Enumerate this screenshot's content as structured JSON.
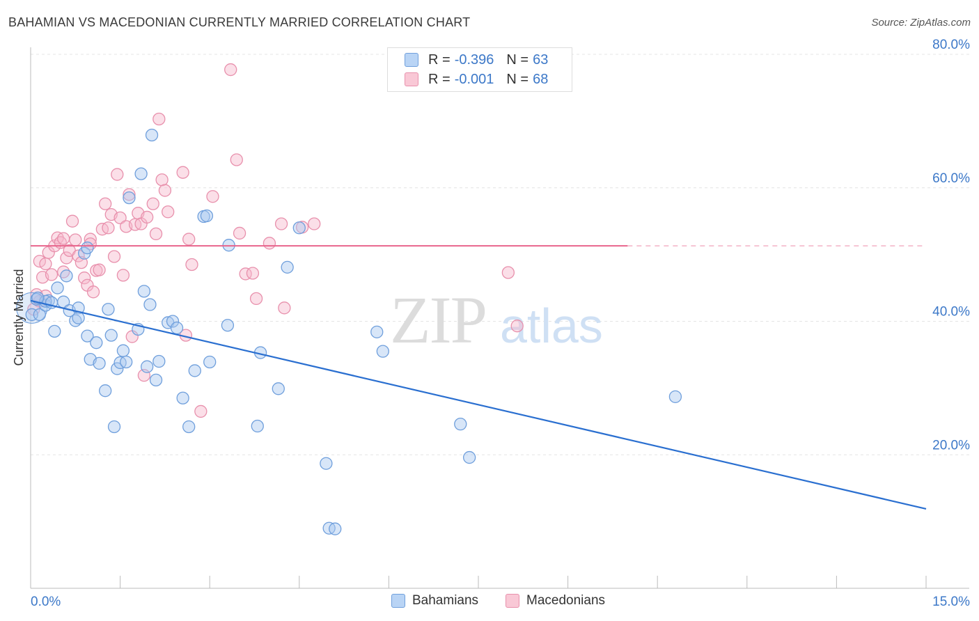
{
  "header": {
    "title": "BAHAMIAN VS MACEDONIAN CURRENTLY MARRIED CORRELATION CHART",
    "source": "Source: ZipAtlas.com"
  },
  "legend": {
    "rows": [
      {
        "r_label": "R = ",
        "r_value": "-0.396",
        "n_label": "N = ",
        "n_value": "63"
      },
      {
        "r_label": "R = ",
        "r_value": "-0.001",
        "n_label": "N = ",
        "n_value": "68"
      }
    ],
    "series": [
      "Bahamians",
      "Macedonians"
    ]
  },
  "colors": {
    "blue_fill": "#a8c8f0",
    "blue_stroke": "#6f9fdc",
    "blue_line": "#2a6fd0",
    "pink_fill": "#f7b7cb",
    "pink_stroke": "#e890ac",
    "pink_line": "#e8648c",
    "axis_text": "#3c78c8"
  },
  "chart_data": {
    "type": "scatter",
    "title": "BAHAMIAN VS MACEDONIAN CURRENTLY MARRIED CORRELATION CHART",
    "xlabel": "",
    "ylabel": "Currently Married",
    "xlim": [
      0,
      15
    ],
    "ylim": [
      0,
      80
    ],
    "x_tick_labels": [
      "0.0%",
      "15.0%"
    ],
    "y_tick_labels": [
      "20.0%",
      "40.0%",
      "60.0%",
      "80.0%"
    ],
    "y_ticks": [
      20,
      40,
      60,
      80
    ],
    "grid": true,
    "legend_position": "top-center",
    "watermark": "ZIPatlas",
    "series": [
      {
        "name": "Bahamians",
        "R": -0.396,
        "N": 63,
        "trend": {
          "x": [
            0,
            15
          ],
          "y": [
            43.1,
            11.9
          ]
        },
        "points": [
          [
            0.02,
            41.0
          ],
          [
            0.1,
            43.3
          ],
          [
            0.15,
            41.0
          ],
          [
            0.25,
            42.4
          ],
          [
            0.3,
            43.1
          ],
          [
            0.4,
            38.5
          ],
          [
            0.45,
            45.0
          ],
          [
            0.55,
            42.9
          ],
          [
            0.6,
            46.8
          ],
          [
            0.65,
            41.6
          ],
          [
            0.75,
            40.1
          ],
          [
            0.8,
            42.0
          ],
          [
            0.8,
            40.5
          ],
          [
            0.9,
            50.2
          ],
          [
            0.95,
            37.8
          ],
          [
            1.0,
            34.3
          ],
          [
            1.1,
            36.8
          ],
          [
            1.15,
            33.7
          ],
          [
            1.25,
            29.6
          ],
          [
            1.3,
            41.8
          ],
          [
            1.35,
            37.9
          ],
          [
            1.4,
            24.2
          ],
          [
            1.45,
            32.9
          ],
          [
            1.5,
            33.8
          ],
          [
            1.55,
            35.6
          ],
          [
            1.6,
            33.9
          ],
          [
            1.65,
            58.5
          ],
          [
            1.8,
            38.8
          ],
          [
            1.85,
            62.1
          ],
          [
            1.9,
            44.5
          ],
          [
            1.95,
            33.2
          ],
          [
            2.0,
            42.5
          ],
          [
            2.03,
            67.9
          ],
          [
            2.1,
            31.2
          ],
          [
            2.15,
            34.0
          ],
          [
            2.3,
            39.8
          ],
          [
            2.38,
            40.0
          ],
          [
            2.45,
            39.0
          ],
          [
            2.55,
            28.5
          ],
          [
            2.65,
            24.2
          ],
          [
            2.75,
            32.6
          ],
          [
            2.9,
            55.7
          ],
          [
            2.95,
            55.8
          ],
          [
            3.0,
            33.9
          ],
          [
            3.3,
            39.4
          ],
          [
            3.32,
            51.4
          ],
          [
            3.8,
            24.3
          ],
          [
            3.85,
            35.3
          ],
          [
            4.15,
            29.9
          ],
          [
            4.3,
            48.1
          ],
          [
            4.5,
            54.0
          ],
          [
            4.95,
            18.7
          ],
          [
            5.0,
            9.0
          ],
          [
            5.1,
            8.9
          ],
          [
            5.8,
            38.4
          ],
          [
            5.9,
            35.5
          ],
          [
            7.2,
            24.6
          ],
          [
            7.35,
            19.6
          ],
          [
            10.8,
            28.7
          ],
          [
            0.95,
            51.0
          ],
          [
            0.25,
            43.0
          ],
          [
            0.12,
            43.5
          ],
          [
            0.35,
            42.8
          ]
        ]
      },
      {
        "name": "Macedonians",
        "R": -0.001,
        "N": 68,
        "trend": {
          "x": [
            0,
            10
          ],
          "y": [
            51.3,
            51.3
          ]
        },
        "trend_dashed": {
          "x": [
            10,
            15
          ],
          "y": [
            51.3,
            51.3
          ]
        },
        "points": [
          [
            0.05,
            41.8
          ],
          [
            0.1,
            44.0
          ],
          [
            0.15,
            49.0
          ],
          [
            0.2,
            46.6
          ],
          [
            0.25,
            48.6
          ],
          [
            0.3,
            50.3
          ],
          [
            0.35,
            47.0
          ],
          [
            0.4,
            51.3
          ],
          [
            0.45,
            52.5
          ],
          [
            0.5,
            51.8
          ],
          [
            0.55,
            47.4
          ],
          [
            0.6,
            49.5
          ],
          [
            0.65,
            50.6
          ],
          [
            0.7,
            55.0
          ],
          [
            0.75,
            52.2
          ],
          [
            0.8,
            49.8
          ],
          [
            0.85,
            48.8
          ],
          [
            0.9,
            46.5
          ],
          [
            0.95,
            45.4
          ],
          [
            1.0,
            52.3
          ],
          [
            1.05,
            44.4
          ],
          [
            1.1,
            47.6
          ],
          [
            1.15,
            47.7
          ],
          [
            1.2,
            53.8
          ],
          [
            1.25,
            57.6
          ],
          [
            1.3,
            54.0
          ],
          [
            1.35,
            56.0
          ],
          [
            1.4,
            49.7
          ],
          [
            1.45,
            62.0
          ],
          [
            1.5,
            55.5
          ],
          [
            1.55,
            46.9
          ],
          [
            1.6,
            54.2
          ],
          [
            1.65,
            59.0
          ],
          [
            1.7,
            37.7
          ],
          [
            1.75,
            54.5
          ],
          [
            1.8,
            56.2
          ],
          [
            1.85,
            54.6
          ],
          [
            1.9,
            31.9
          ],
          [
            1.95,
            55.6
          ],
          [
            2.05,
            57.6
          ],
          [
            2.1,
            53.1
          ],
          [
            2.15,
            70.3
          ],
          [
            2.2,
            61.2
          ],
          [
            2.25,
            59.6
          ],
          [
            2.3,
            56.4
          ],
          [
            2.55,
            62.3
          ],
          [
            2.6,
            37.9
          ],
          [
            2.65,
            52.3
          ],
          [
            2.7,
            48.5
          ],
          [
            2.85,
            26.5
          ],
          [
            3.05,
            58.7
          ],
          [
            3.35,
            77.7
          ],
          [
            3.45,
            64.2
          ],
          [
            3.5,
            53.2
          ],
          [
            3.6,
            47.1
          ],
          [
            3.72,
            47.2
          ],
          [
            3.78,
            43.4
          ],
          [
            4.0,
            51.7
          ],
          [
            4.2,
            54.6
          ],
          [
            4.25,
            42.0
          ],
          [
            4.55,
            54.1
          ],
          [
            4.75,
            54.6
          ],
          [
            8.0,
            47.3
          ],
          [
            8.15,
            39.3
          ],
          [
            0.15,
            43.0
          ],
          [
            0.25,
            43.8
          ],
          [
            0.55,
            52.4
          ],
          [
            1.0,
            51.6
          ]
        ]
      }
    ]
  }
}
